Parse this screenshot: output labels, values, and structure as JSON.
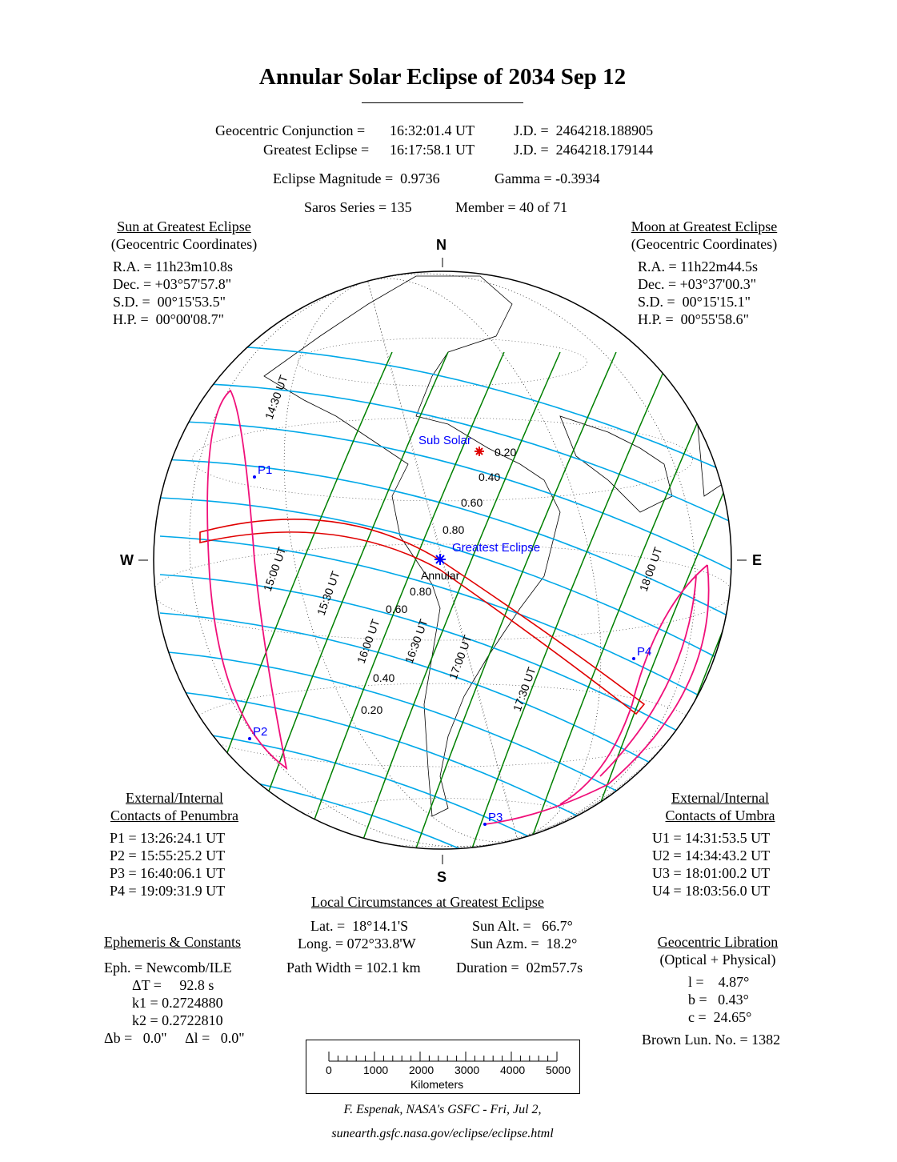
{
  "title": "Annular Solar Eclipse of  2034 Sep 12",
  "header": {
    "conj_label": "Geocentric Conjunction =",
    "conj_time": "16:32:01.4 UT",
    "conj_jd": "J.D. =  2464218.188905",
    "ge_label": "Greatest Eclipse =",
    "ge_time": "16:17:58.1 UT",
    "ge_jd": "J.D. =  2464218.179144",
    "magnitude": "Eclipse Magnitude =  0.9736",
    "gamma": "Gamma = -0.3934",
    "saros": "Saros Series = 135",
    "member": "Member = 40 of 71"
  },
  "sun": {
    "title": "Sun at Greatest Eclipse",
    "sub": "(Geocentric Coordinates)",
    "lines": [
      "R.A. = 11h23m10.8s",
      "Dec. = +03°57'57.8\"",
      "S.D. =  00°15'53.5\"",
      "H.P. =  00°00'08.7\""
    ]
  },
  "moon": {
    "title": "Moon at Greatest Eclipse",
    "sub": "(Geocentric Coordinates)",
    "lines": [
      "R.A. = 11h22m44.5s",
      "Dec. = +03°37'00.3\"",
      "S.D. =  00°15'15.1\"",
      "H.P. =  00°55'58.6\""
    ]
  },
  "compass": {
    "n": "N",
    "s": "S",
    "e": "E",
    "w": "W"
  },
  "map": {
    "sub_solar": "Sub Solar",
    "greatest": "Greatest Eclipse",
    "annular": "Annular",
    "contacts": [
      "P1",
      "P2",
      "P3",
      "P4"
    ],
    "time_labels": [
      "14:30 UT",
      "15:00 UT",
      "15:30 UT",
      "16:00 UT",
      "16:30 UT",
      "17:00 UT",
      "17:30 UT",
      "18:00 UT"
    ],
    "mag_labels": [
      "0.20",
      "0.40",
      "0.60",
      "0.80",
      "0.80",
      "0.60",
      "0.40",
      "0.20"
    ],
    "colors": {
      "magnitude": "#00a8e8",
      "time": "#008000",
      "path": "#e00000",
      "penumbra": "#f0107a",
      "label": "#0000ff"
    }
  },
  "penumbra": {
    "title1": "External/Internal",
    "title2": "Contacts of Penumbra",
    "lines": [
      "P1 = 13:26:24.1 UT",
      "P2 = 15:55:25.2 UT",
      "P3 = 16:40:06.1 UT",
      "P4 = 19:09:31.9 UT"
    ]
  },
  "umbra": {
    "title1": "External/Internal",
    "title2": "Contacts of Umbra",
    "lines": [
      "U1 = 14:31:53.5 UT",
      "U2 = 14:34:43.2 UT",
      "U3 = 18:01:00.2 UT",
      "U4 = 18:03:56.0 UT"
    ]
  },
  "local": {
    "title": "Local Circumstances at Greatest Eclipse",
    "lat": "Lat. =  18°14.1'S",
    "long": "Long. = 072°33.8'W",
    "sun_alt": "Sun Alt. =   66.7°",
    "sun_azm": "Sun Azm. =  18.2°",
    "path_width": "Path Width = 102.1 km",
    "duration": "Duration =  02m57.7s"
  },
  "ephemeris": {
    "title": "Ephemeris & Constants",
    "eph": "Eph. = Newcomb/ILE",
    "dt": "ΔT =     92.8 s",
    "k1": "k1 = 0.2724880",
    "k2": "k2 = 0.2722810",
    "db": "Δb =   0.0\"     Δl =   0.0\""
  },
  "libration": {
    "title": "Geocentric Libration",
    "sub": "(Optical + Physical)",
    "l": "l =    4.87°",
    "b": "b =   0.43°",
    "c": "c =  24.65°",
    "brown": "Brown Lun. No. = 1382"
  },
  "scale": {
    "ticks": [
      "0",
      "1000",
      "2000",
      "3000",
      "4000",
      "5000"
    ],
    "unit": "Kilometers"
  },
  "footer": {
    "credit": "F. Espenak, NASA's GSFC - Fri, Jul 2,",
    "url": "sunearth.gsfc.nasa.gov/eclipse/eclipse.html"
  }
}
